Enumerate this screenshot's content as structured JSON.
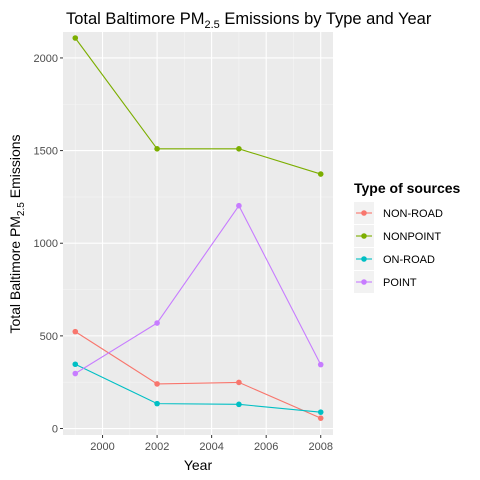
{
  "chart_data": {
    "type": "line",
    "title": {
      "prefix": "Total Baltimore  PM",
      "sub": "2.5",
      "suffix": " Emissions by Type and Year"
    },
    "xlabel": "Year",
    "ylabel": {
      "prefix": "Total Baltimore  PM",
      "sub": "2.5",
      "suffix": " Emissions"
    },
    "x": [
      1999,
      2002,
      2005,
      2008
    ],
    "xlim": [
      1998.55,
      2008.45
    ],
    "ylim": [
      -35,
      2140
    ],
    "xticks": [
      2000,
      2002,
      2004,
      2006,
      2008
    ],
    "yticks": [
      0,
      500,
      1000,
      1500,
      2000
    ],
    "grid": true,
    "legend_title": "Type of sources",
    "legend_position": "right",
    "series": [
      {
        "name": "NON-ROAD",
        "color": "#F8766D",
        "values": [
          522.9,
          240.8,
          248.9,
          55.8
        ]
      },
      {
        "name": "NONPOINT",
        "color": "#7CAE00",
        "values": [
          2107.6,
          1509.5,
          1509.5,
          1373.2
        ]
      },
      {
        "name": "ON-ROAD",
        "color": "#00BFC4",
        "values": [
          346.8,
          134.3,
          130.4,
          88.3
        ]
      },
      {
        "name": "POINT",
        "color": "#C77CFF",
        "values": [
          296.8,
          569.3,
          1202.5,
          344.98
        ]
      }
    ]
  },
  "colors": {
    "panel": "#EBEBEB",
    "grid_major": "#FFFFFF",
    "grid_minor": "#F5F5F5"
  }
}
